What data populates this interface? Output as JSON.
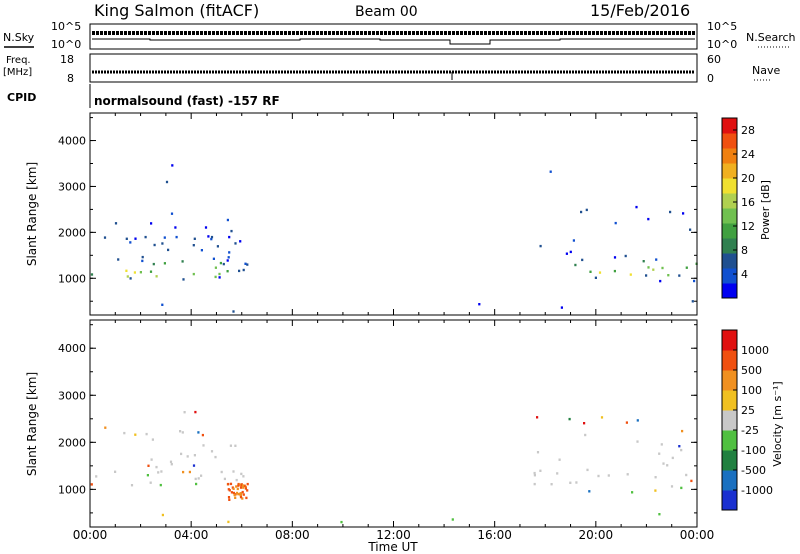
{
  "header": {
    "station": "King Salmon (fitACF)",
    "beam": "Beam 00",
    "date": "15/Feb/2016"
  },
  "panels": {
    "nsky_label": "N.Sky",
    "nsearch_label": "N.Search",
    "freq_label_top": "Freq.",
    "freq_label_bottom": "[MHz]",
    "nave_label": "Nave",
    "cpid_label": "CPID",
    "cpid_text": "normalsound (fast) -157 RF",
    "noise_ticks_left": [
      "10^5",
      "10^0"
    ],
    "noise_ticks_right": [
      "10^5",
      "10^0"
    ],
    "freq_ticks": [
      "18",
      "8"
    ],
    "nave_ticks": [
      "60",
      "0"
    ]
  },
  "chart_data": [
    {
      "type": "heatmap",
      "name": "power",
      "ylabel": "Slant Range [km]",
      "ylim": [
        200,
        4600
      ],
      "yticks": [
        "1000",
        "2000",
        "3000",
        "4000"
      ],
      "xlim": [
        0,
        24
      ],
      "colorbar": {
        "label": "Power [dB]",
        "ticks": [
          "28",
          "24",
          "20",
          "16",
          "12",
          "8",
          "4"
        ],
        "colors": [
          "#0000f0",
          "#1050d0",
          "#205090",
          "#308050",
          "#40a040",
          "#70c050",
          "#b0d050",
          "#f0e030",
          "#f0b020",
          "#f08010",
          "#f05010",
          "#e01010"
        ]
      },
      "regions": [
        {
          "t0": 0.0,
          "t1": 6.2,
          "r0": 950,
          "r1": 1500,
          "level": 0.55
        },
        {
          "t0": 2.0,
          "t1": 6.3,
          "r0": 1100,
          "r1": 2300,
          "level": 0.45
        },
        {
          "t0": 0.0,
          "t1": 4.5,
          "r0": 1800,
          "r1": 2700,
          "level": 0.15
        },
        {
          "t0": 2.5,
          "t1": 4.5,
          "r0": 2600,
          "r1": 3500,
          "level": 0.1
        },
        {
          "t0": 17.5,
          "t1": 24,
          "r0": 950,
          "r1": 1450,
          "level": 0.45
        },
        {
          "t0": 17.5,
          "t1": 24,
          "r0": 1400,
          "r1": 2700,
          "level": 0.15
        },
        {
          "t0": 18.0,
          "t1": 19.5,
          "r0": 2700,
          "r1": 3500,
          "level": 0.08
        },
        {
          "t0": 0.0,
          "t1": 24,
          "r0": 230,
          "r1": 600,
          "level": 0.05
        }
      ]
    },
    {
      "type": "heatmap",
      "name": "velocity",
      "ylabel": "Slant Range [km]",
      "ylim": [
        200,
        4600
      ],
      "yticks": [
        "1000",
        "2000",
        "3000",
        "4000"
      ],
      "xlim": [
        0,
        24
      ],
      "xticks": [
        "00:00",
        "04:00",
        "08:00",
        "12:00",
        "16:00",
        "20:00",
        "00:00"
      ],
      "xlabel": "Time UT",
      "colorbar": {
        "label": "Velocity [m s⁻¹]",
        "ticks": [
          "1000",
          "500",
          "100",
          "25",
          "-25",
          "-100",
          "-500",
          "-1000"
        ],
        "colors": [
          "#1a30d0",
          "#1a70c0",
          "#208040",
          "#50c040",
          "#c8c8c8",
          "#f0c020",
          "#f09020",
          "#f05010",
          "#e01010"
        ]
      },
      "regions": [
        {
          "t0": 0.0,
          "t1": 6.2,
          "r0": 1100,
          "r1": 1400,
          "level": 0.7
        },
        {
          "t0": 2.0,
          "t1": 6.3,
          "r0": 1300,
          "r1": 2300,
          "level": 0.45
        },
        {
          "t0": 0.0,
          "t1": 4.5,
          "r0": 1800,
          "r1": 2700,
          "level": 0.15
        },
        {
          "t0": 17.5,
          "t1": 24,
          "r0": 950,
          "r1": 1450,
          "level": 0.5
        },
        {
          "t0": 17.5,
          "t1": 24,
          "r0": 1400,
          "r1": 2700,
          "level": 0.18
        },
        {
          "t0": 0.0,
          "t1": 24,
          "r0": 230,
          "r1": 600,
          "level": 0.05
        }
      ]
    }
  ]
}
